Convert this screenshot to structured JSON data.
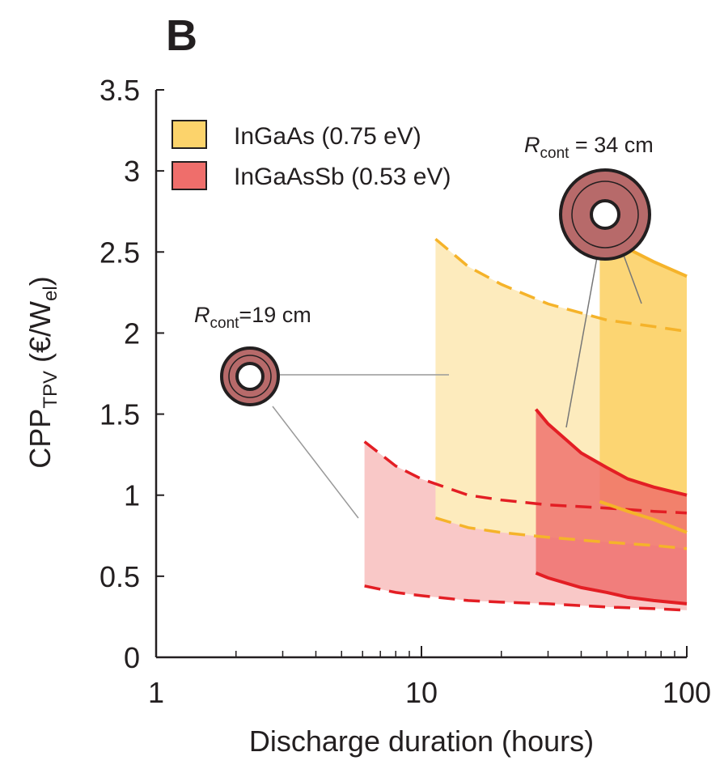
{
  "chart_data": {
    "type": "area",
    "panel_label": "B",
    "xlabel": "Discharge duration (hours)",
    "ylabel_main": "CPP",
    "ylabel_sub": "TPV",
    "ylabel_unit_open": " (€/W",
    "ylabel_unit_sub": "el",
    "ylabel_unit_close": ")",
    "xscale": "log",
    "xlim": [
      1,
      100
    ],
    "ylim": [
      0,
      3.5
    ],
    "xticks": [
      {
        "value": 1,
        "label": "1"
      },
      {
        "value": 10,
        "label": "10"
      },
      {
        "value": 100,
        "label": "100"
      }
    ],
    "yticks": [
      {
        "value": 0,
        "label": "0"
      },
      {
        "value": 0.5,
        "label": "0.5"
      },
      {
        "value": 1,
        "label": "1"
      },
      {
        "value": 1.5,
        "label": "1.5"
      },
      {
        "value": 2,
        "label": "2"
      },
      {
        "value": 2.5,
        "label": "2.5"
      },
      {
        "value": 3,
        "label": "3"
      },
      {
        "value": 3.5,
        "label": "3.5"
      }
    ],
    "legend": [
      {
        "label": "InGaAs (0.75 eV)",
        "color": "#fcd36b"
      },
      {
        "label": "InGaAsSb (0.53 eV)",
        "color": "#ef6e6b"
      }
    ],
    "legend_position": "top-left",
    "colors": {
      "ingaas_fill": "#fcd36b",
      "ingaas_fill_light": "#fdebbd",
      "ingaas_line": "#f5b32a",
      "ingaassb_fill": "#ef6e6b",
      "ingaassb_fill_light": "#f9c7c7",
      "ingaassb_line": "#e31e24",
      "axis": "#231f20",
      "container_fill": "#b76a6a",
      "leader": "#999999"
    },
    "series": [
      {
        "name": "InGaAs (0.75 eV)",
        "material": "InGaAs",
        "container": "R_cont = 19 cm",
        "style": "dashed",
        "x": [
          11.3,
          15,
          20,
          30,
          50,
          75,
          100
        ],
        "upper": [
          2.58,
          2.41,
          2.3,
          2.18,
          2.08,
          2.04,
          2.01
        ],
        "lower": [
          0.86,
          0.8,
          0.77,
          0.74,
          0.71,
          0.69,
          0.67
        ]
      },
      {
        "name": "InGaAsSb (0.53 eV)",
        "material": "InGaAsSb",
        "container": "R_cont = 19 cm",
        "style": "dashed",
        "x": [
          6.1,
          8,
          10,
          15,
          20,
          30,
          50,
          75,
          100
        ],
        "upper": [
          1.33,
          1.18,
          1.1,
          1.0,
          0.97,
          0.94,
          0.92,
          0.9,
          0.89
        ],
        "lower": [
          0.44,
          0.4,
          0.38,
          0.35,
          0.34,
          0.33,
          0.31,
          0.3,
          0.29
        ]
      },
      {
        "name": "InGaAs (0.75 eV)",
        "material": "InGaAs",
        "container": "R_cont = 34 cm",
        "style": "solid",
        "x": [
          47,
          60,
          75,
          100
        ],
        "upper": [
          2.62,
          2.52,
          2.44,
          2.35
        ],
        "lower": [
          0.96,
          0.9,
          0.85,
          0.77
        ]
      },
      {
        "name": "InGaAsSb (0.53 eV)",
        "material": "InGaAsSb",
        "container": "R_cont = 34 cm",
        "style": "solid",
        "x": [
          27,
          30,
          40,
          50,
          60,
          75,
          100
        ],
        "upper": [
          1.53,
          1.44,
          1.26,
          1.17,
          1.1,
          1.05,
          1.0
        ],
        "lower": [
          0.52,
          0.49,
          0.43,
          0.4,
          0.37,
          0.35,
          0.33
        ]
      }
    ],
    "annotations": [
      {
        "symbol": "R",
        "subscript": "cont",
        "text": "=19 cm"
      },
      {
        "symbol": "R",
        "subscript": "cont",
        "text": " = 34 cm"
      }
    ]
  }
}
